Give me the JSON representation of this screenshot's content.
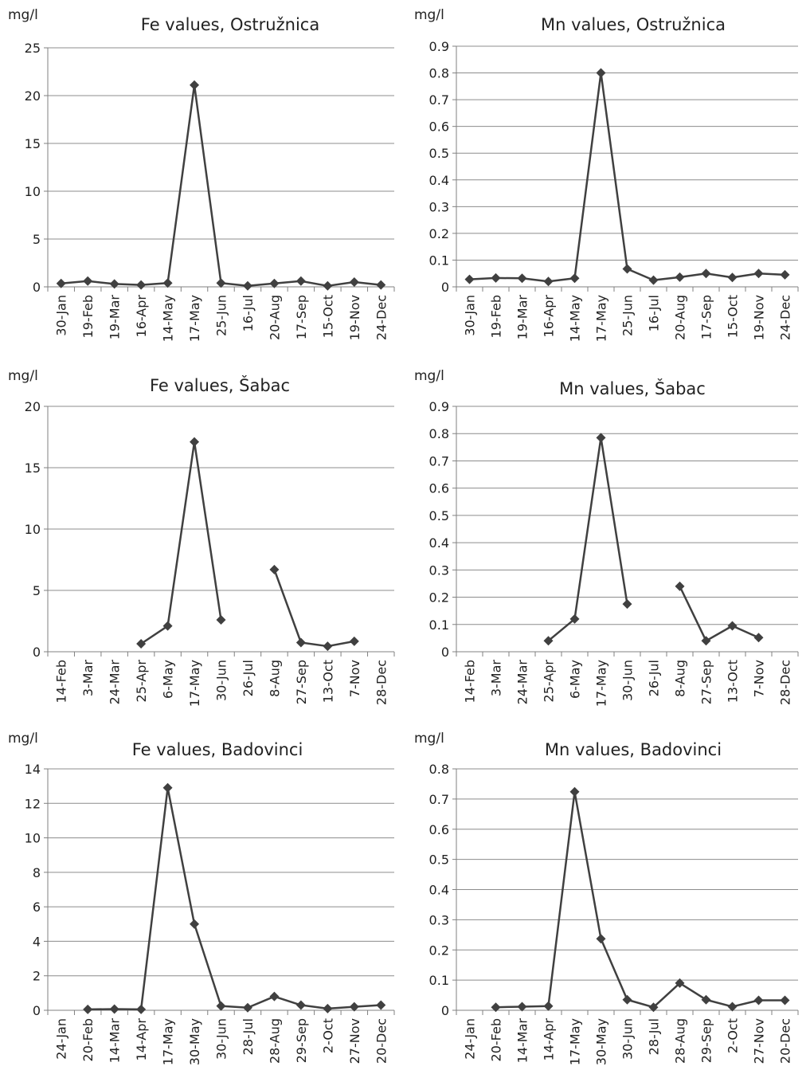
{
  "chart_data": [
    {
      "type": "line",
      "title": "Fe values, Ostružnica",
      "ylabel": "mg/l",
      "ylim": [
        0,
        25
      ],
      "yticks": [
        0,
        5,
        10,
        15,
        20,
        25
      ],
      "ytick_labels": [
        "0",
        "5",
        "10",
        "15",
        "20",
        "25"
      ],
      "categories": [
        "30-Jan",
        "19-Feb",
        "19-Mar",
        "16-Apr",
        "14-May",
        "17-May",
        "25-Jun",
        "16-Jul",
        "20-Aug",
        "17-Sep",
        "15-Oct",
        "19-Nov",
        "24-Dec"
      ],
      "values": [
        0.35,
        0.6,
        0.3,
        0.2,
        0.4,
        21.1,
        0.4,
        0.1,
        0.35,
        0.6,
        0.1,
        0.5,
        0.2
      ],
      "grid": true,
      "color": "#404040"
    },
    {
      "type": "line",
      "title": "Mn values, Ostružnica",
      "ylabel": "mg/l",
      "ylim": [
        0,
        0.9
      ],
      "yticks": [
        0,
        0.1,
        0.2,
        0.3,
        0.4,
        0.5,
        0.6,
        0.7,
        0.8,
        0.9
      ],
      "ytick_labels": [
        "0",
        "0.1",
        "0.2",
        "0.3",
        "0.4",
        "0.5",
        "0.6",
        "0.7",
        "0.8",
        "0.9"
      ],
      "categories": [
        "30-Jan",
        "19-Feb",
        "19-Mar",
        "16-Apr",
        "14-May",
        "17-May",
        "25-Jun",
        "16-Jul",
        "20-Aug",
        "17-Sep",
        "15-Oct",
        "19-Nov",
        "24-Dec"
      ],
      "values": [
        0.028,
        0.033,
        0.032,
        0.02,
        0.032,
        0.8,
        0.067,
        0.025,
        0.036,
        0.05,
        0.035,
        0.05,
        0.045
      ],
      "grid": true,
      "color": "#404040"
    },
    {
      "type": "line",
      "title": "Fe values, Šabac",
      "ylabel": "mg/l",
      "ylim": [
        0,
        20
      ],
      "yticks": [
        0,
        5,
        10,
        15,
        20
      ],
      "ytick_labels": [
        "0",
        "5",
        "10",
        "15",
        "20"
      ],
      "categories": [
        "14-Feb",
        "3-Mar",
        "24-Mar",
        "25-Apr",
        "6-May",
        "17-May",
        "30-Jun",
        "26-Jul",
        "8-Aug",
        "27-Sep",
        "13-Oct",
        "7-Nov",
        "28-Dec"
      ],
      "values": [
        null,
        null,
        null,
        0.65,
        2.1,
        17.1,
        2.6,
        null,
        6.7,
        0.75,
        0.45,
        0.85,
        null
      ],
      "grid": true,
      "color": "#404040"
    },
    {
      "type": "line",
      "title": "Mn values, Šabac",
      "ylabel": "mg/l",
      "ylim": [
        0,
        0.9
      ],
      "yticks": [
        0,
        0.1,
        0.2,
        0.3,
        0.4,
        0.5,
        0.6,
        0.7,
        0.8,
        0.9
      ],
      "ytick_labels": [
        "0",
        "0.1",
        "0.2",
        "0.3",
        "0.4",
        "0.5",
        "0.6",
        "0.7",
        "0.8",
        "0.9"
      ],
      "categories": [
        "14-Feb",
        "3-Mar",
        "24-Mar",
        "25-Apr",
        "6-May",
        "17-May",
        "30-Jun",
        "26-Jul",
        "8-Aug",
        "27-Sep",
        "13-Oct",
        "7-Nov",
        "28-Dec"
      ],
      "values": [
        null,
        null,
        null,
        0.04,
        0.12,
        0.785,
        0.175,
        null,
        0.24,
        0.04,
        0.095,
        0.052,
        null
      ],
      "grid": true,
      "color": "#404040"
    },
    {
      "type": "line",
      "title": "Fe values, Badovinci",
      "ylabel": "mg/l",
      "ylim": [
        0,
        14
      ],
      "yticks": [
        0,
        2,
        4,
        6,
        8,
        10,
        12,
        14
      ],
      "ytick_labels": [
        "0",
        "2",
        "4",
        "6",
        "8",
        "10",
        "12",
        "14"
      ],
      "categories": [
        "24-Jan",
        "20-Feb",
        "14-Mar",
        "14-Apr",
        "17-May",
        "30-May",
        "30-Jun",
        "28-Jul",
        "28-Aug",
        "29-Sep",
        "2-Oct",
        "27-Nov",
        "20-Dec"
      ],
      "values": [
        null,
        0.05,
        0.07,
        0.05,
        12.9,
        5.0,
        0.25,
        0.15,
        0.8,
        0.3,
        0.1,
        0.2,
        0.3
      ],
      "grid": true,
      "color": "#404040"
    },
    {
      "type": "line",
      "title": "Mn values, Badovinci",
      "ylabel": "mg/l",
      "ylim": [
        0,
        0.8
      ],
      "yticks": [
        0,
        0.1,
        0.2,
        0.3,
        0.4,
        0.5,
        0.6,
        0.7,
        0.8
      ],
      "ytick_labels": [
        "0",
        "0.1",
        "0.2",
        "0.3",
        "0.4",
        "0.5",
        "0.6",
        "0.7",
        "0.8"
      ],
      "categories": [
        "24-Jan",
        "20-Feb",
        "14-Mar",
        "14-Apr",
        "17-May",
        "30-May",
        "30-Jun",
        "28-Jul",
        "28-Aug",
        "29-Sep",
        "2-Oct",
        "27-Nov",
        "20-Dec"
      ],
      "values": [
        null,
        0.01,
        0.012,
        0.014,
        0.724,
        0.237,
        0.035,
        0.01,
        0.09,
        0.035,
        0.012,
        0.033,
        0.033
      ],
      "grid": true,
      "color": "#404040"
    }
  ]
}
